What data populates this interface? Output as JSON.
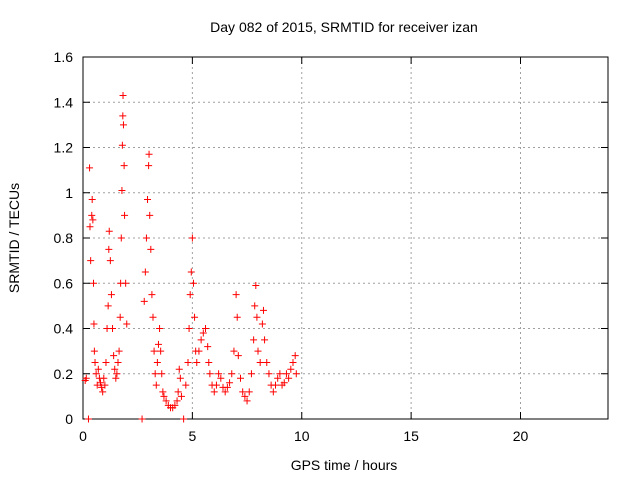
{
  "chart_data": {
    "type": "scatter",
    "title": "Day 082 of 2015, SRMTID for receiver izan",
    "xlabel": "GPS time / hours",
    "ylabel": "SRMTID / TECUs",
    "xlim": [
      0,
      24
    ],
    "ylim": [
      0,
      1.6
    ],
    "xticks": [
      0,
      5,
      10,
      15,
      20
    ],
    "yticks": [
      0,
      0.2,
      0.4,
      0.6,
      0.8,
      1.0,
      1.2,
      1.4,
      1.6
    ],
    "xtick_labels": [
      "0",
      "5",
      "10",
      "15",
      "20"
    ],
    "ytick_labels": [
      "0",
      "0.2",
      "0.4",
      "0.6",
      "0.8",
      "1",
      "1.2",
      "1.4",
      "1.6"
    ],
    "grid": true,
    "marker": "+",
    "color": "#ff0000",
    "series": [
      {
        "name": "SRMTID",
        "points": [
          [
            0.1,
            0.17
          ],
          [
            0.15,
            0.18
          ],
          [
            0.25,
            0.0
          ],
          [
            0.3,
            1.11
          ],
          [
            0.32,
            0.85
          ],
          [
            0.35,
            0.7
          ],
          [
            0.4,
            0.9
          ],
          [
            0.42,
            0.97
          ],
          [
            0.45,
            0.88
          ],
          [
            0.48,
            0.6
          ],
          [
            0.5,
            0.42
          ],
          [
            0.52,
            0.3
          ],
          [
            0.55,
            0.25
          ],
          [
            0.6,
            0.2
          ],
          [
            0.65,
            0.15
          ],
          [
            0.7,
            0.22
          ],
          [
            0.75,
            0.18
          ],
          [
            0.8,
            0.16
          ],
          [
            0.85,
            0.14
          ],
          [
            0.9,
            0.12
          ],
          [
            0.95,
            0.18
          ],
          [
            1.0,
            0.15
          ],
          [
            1.05,
            0.25
          ],
          [
            1.1,
            0.4
          ],
          [
            1.15,
            0.5
          ],
          [
            1.18,
            0.75
          ],
          [
            1.2,
            0.83
          ],
          [
            1.25,
            0.7
          ],
          [
            1.3,
            0.55
          ],
          [
            1.35,
            0.4
          ],
          [
            1.4,
            0.28
          ],
          [
            1.45,
            0.22
          ],
          [
            1.5,
            0.18
          ],
          [
            1.55,
            0.2
          ],
          [
            1.6,
            0.25
          ],
          [
            1.65,
            0.3
          ],
          [
            1.7,
            0.45
          ],
          [
            1.72,
            0.6
          ],
          [
            1.75,
            0.8
          ],
          [
            1.78,
            1.01
          ],
          [
            1.8,
            1.21
          ],
          [
            1.82,
            1.34
          ],
          [
            1.83,
            1.43
          ],
          [
            1.85,
            1.3
          ],
          [
            1.88,
            1.12
          ],
          [
            1.9,
            0.9
          ],
          [
            1.95,
            0.6
          ],
          [
            2.0,
            0.42
          ],
          [
            2.7,
            0.0
          ],
          [
            2.8,
            0.52
          ],
          [
            2.85,
            0.65
          ],
          [
            2.9,
            0.8
          ],
          [
            2.95,
            0.97
          ],
          [
            3.0,
            1.12
          ],
          [
            3.02,
            1.17
          ],
          [
            3.05,
            0.9
          ],
          [
            3.1,
            0.75
          ],
          [
            3.15,
            0.55
          ],
          [
            3.2,
            0.45
          ],
          [
            3.25,
            0.3
          ],
          [
            3.3,
            0.2
          ],
          [
            3.35,
            0.15
          ],
          [
            3.4,
            0.25
          ],
          [
            3.45,
            0.33
          ],
          [
            3.5,
            0.4
          ],
          [
            3.55,
            0.3
          ],
          [
            3.6,
            0.2
          ],
          [
            3.65,
            0.12
          ],
          [
            3.7,
            0.1
          ],
          [
            3.8,
            0.08
          ],
          [
            3.9,
            0.06
          ],
          [
            4.0,
            0.05
          ],
          [
            4.1,
            0.05
          ],
          [
            4.2,
            0.06
          ],
          [
            4.3,
            0.08
          ],
          [
            4.35,
            0.12
          ],
          [
            4.4,
            0.22
          ],
          [
            4.45,
            0.18
          ],
          [
            4.5,
            0.1
          ],
          [
            4.6,
            0.0
          ],
          [
            4.7,
            0.15
          ],
          [
            4.8,
            0.25
          ],
          [
            4.85,
            0.4
          ],
          [
            4.9,
            0.55
          ],
          [
            4.95,
            0.65
          ],
          [
            5.0,
            0.8
          ],
          [
            5.05,
            0.6
          ],
          [
            5.1,
            0.45
          ],
          [
            5.15,
            0.3
          ],
          [
            5.2,
            0.25
          ],
          [
            5.3,
            0.3
          ],
          [
            5.4,
            0.35
          ],
          [
            5.5,
            0.38
          ],
          [
            5.6,
            0.4
          ],
          [
            5.7,
            0.32
          ],
          [
            5.75,
            0.25
          ],
          [
            5.8,
            0.2
          ],
          [
            5.9,
            0.15
          ],
          [
            6.0,
            0.12
          ],
          [
            6.1,
            0.15
          ],
          [
            6.2,
            0.2
          ],
          [
            6.3,
            0.18
          ],
          [
            6.4,
            0.14
          ],
          [
            6.5,
            0.12
          ],
          [
            6.6,
            0.14
          ],
          [
            6.7,
            0.16
          ],
          [
            6.8,
            0.2
          ],
          [
            6.9,
            0.3
          ],
          [
            7.0,
            0.55
          ],
          [
            7.05,
            0.45
          ],
          [
            7.1,
            0.28
          ],
          [
            7.2,
            0.18
          ],
          [
            7.3,
            0.12
          ],
          [
            7.4,
            0.1
          ],
          [
            7.5,
            0.08
          ],
          [
            7.6,
            0.12
          ],
          [
            7.7,
            0.2
          ],
          [
            7.8,
            0.35
          ],
          [
            7.85,
            0.5
          ],
          [
            7.9,
            0.59
          ],
          [
            7.95,
            0.45
          ],
          [
            8.0,
            0.3
          ],
          [
            8.1,
            0.25
          ],
          [
            8.2,
            0.42
          ],
          [
            8.25,
            0.48
          ],
          [
            8.3,
            0.35
          ],
          [
            8.4,
            0.25
          ],
          [
            8.5,
            0.2
          ],
          [
            8.6,
            0.15
          ],
          [
            8.7,
            0.12
          ],
          [
            8.8,
            0.15
          ],
          [
            8.9,
            0.18
          ],
          [
            9.0,
            0.2
          ],
          [
            9.1,
            0.15
          ],
          [
            9.2,
            0.16
          ],
          [
            9.3,
            0.2
          ],
          [
            9.4,
            0.18
          ],
          [
            9.5,
            0.22
          ],
          [
            9.6,
            0.25
          ],
          [
            9.7,
            0.28
          ],
          [
            9.75,
            0.2
          ]
        ]
      }
    ]
  }
}
